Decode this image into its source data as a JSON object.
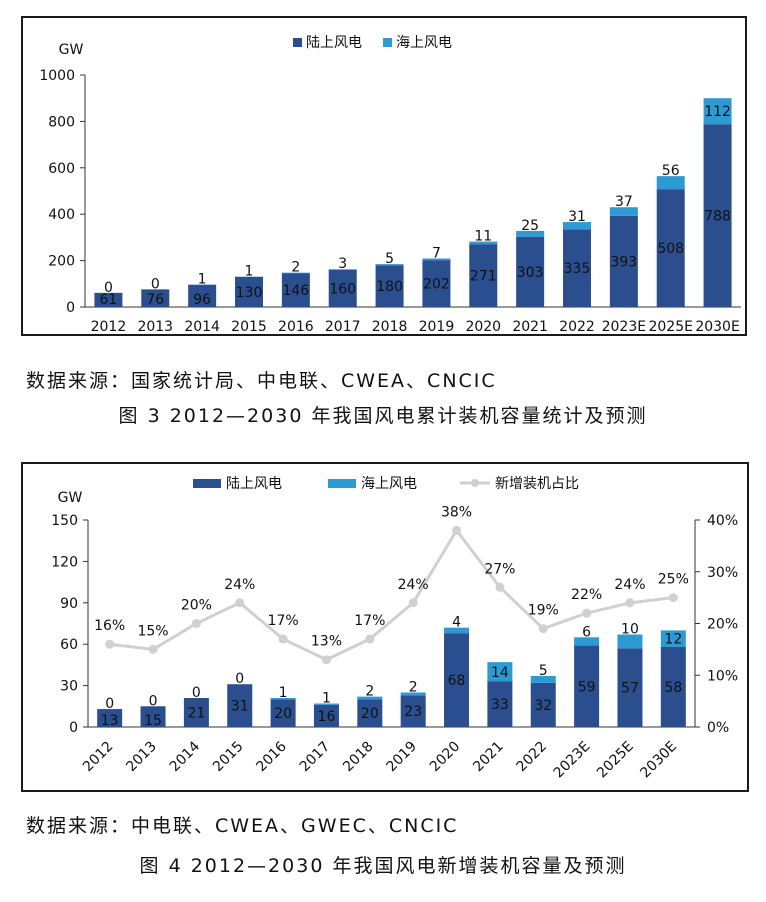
{
  "colors": {
    "onshore": "#2B4F8E",
    "offshore": "#2E9AD4",
    "share_line": "#D0D0D0",
    "axis": "#333333",
    "frame": "#1a1a1a"
  },
  "source1": "数据来源：国家统计局、中电联、CWEA、CNCIC",
  "caption1": "图 3 2012—2030 年我国风电累计装机容量统计及预测",
  "source2": "数据来源：中电联、CWEA、GWEC、CNCIC",
  "caption2": "图 4  2012—2030 年我国风电新增装机容量及预测",
  "chart_data": [
    {
      "type": "bar",
      "stacked": true,
      "yunit": "GW",
      "ylim": [
        0,
        1000
      ],
      "yticks": [
        0,
        200,
        400,
        600,
        800,
        1000
      ],
      "legend_position": "top-center",
      "categories": [
        "2012",
        "2013",
        "2014",
        "2015",
        "2016",
        "2017",
        "2018",
        "2019",
        "2020",
        "2021",
        "2022",
        "2023E",
        "2025E",
        "2030E"
      ],
      "series": [
        {
          "name": "陆上风电",
          "values": [
            61,
            76,
            96,
            130,
            146,
            160,
            180,
            202,
            271,
            303,
            335,
            393,
            508,
            788
          ]
        },
        {
          "name": "海上风电",
          "values": [
            0,
            0,
            1,
            1,
            2,
            3,
            5,
            7,
            11,
            25,
            31,
            37,
            56,
            112
          ]
        }
      ]
    },
    {
      "type": "bar",
      "stacked": true,
      "yunit": "GW",
      "ylim": [
        0,
        150
      ],
      "yticks": [
        0,
        30,
        60,
        90,
        120,
        150
      ],
      "y2lim": [
        0,
        40
      ],
      "y2ticks": [
        "0%",
        "10%",
        "20%",
        "30%",
        "40%"
      ],
      "legend_position": "top-center",
      "categories": [
        "2012",
        "2013",
        "2014",
        "2015",
        "2016",
        "2017",
        "2018",
        "2019",
        "2020",
        "2021",
        "2022",
        "2023E",
        "2025E",
        "2030E"
      ],
      "series": [
        {
          "name": "陆上风电",
          "values": [
            13,
            15,
            21,
            31,
            20,
            16,
            20,
            23,
            68,
            33,
            32,
            59,
            57,
            58
          ]
        },
        {
          "name": "海上风电",
          "values": [
            0,
            0,
            0,
            0,
            1,
            1,
            2,
            2,
            4,
            14,
            5,
            6,
            10,
            12
          ]
        },
        {
          "name": "新增装机占比",
          "type": "line",
          "axis": "right",
          "values": [
            16,
            15,
            20,
            24,
            17,
            13,
            17,
            24,
            38,
            27,
            19,
            22,
            24,
            25
          ],
          "labels": [
            "16%",
            "15%",
            "20%",
            "24%",
            "17%",
            "13%",
            "17%",
            "24%",
            "38%",
            "27%",
            "19%",
            "22%",
            "24%",
            "25%"
          ]
        }
      ]
    }
  ]
}
